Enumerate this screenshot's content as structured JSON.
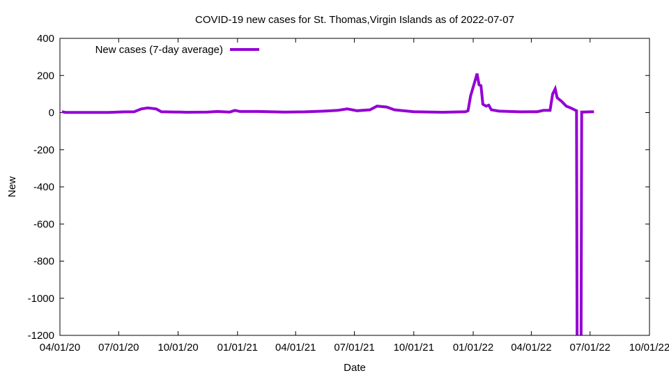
{
  "chart_data": {
    "type": "line",
    "title": "COVID-19 new cases for St. Thomas,Virgin Islands as of 2022-07-07",
    "xlabel": "Date",
    "ylabel": "New",
    "xlim": [
      "2020-04-01",
      "2022-10-01"
    ],
    "ylim": [
      -1200,
      400
    ],
    "x_ticks": [
      "04/01/20",
      "07/01/20",
      "10/01/20",
      "01/01/21",
      "04/01/21",
      "07/01/21",
      "10/01/21",
      "01/01/22",
      "04/01/22",
      "07/01/22",
      "10/01/22"
    ],
    "x_tick_dates": [
      "2020-04-01",
      "2020-07-01",
      "2020-10-01",
      "2021-01-01",
      "2021-04-01",
      "2021-07-01",
      "2021-10-01",
      "2022-01-01",
      "2022-04-01",
      "2022-07-01",
      "2022-10-01"
    ],
    "y_ticks": [
      -1200,
      -1000,
      -800,
      -600,
      -400,
      -200,
      0,
      200,
      400
    ],
    "grid": false,
    "legend_position": "top-left",
    "series": [
      {
        "name": "New cases (7-day average)",
        "color": "#9400d3",
        "points": [
          [
            "2020-04-04",
            5
          ],
          [
            "2020-04-10",
            1
          ],
          [
            "2020-06-15",
            1
          ],
          [
            "2020-07-10",
            4
          ],
          [
            "2020-07-25",
            5
          ],
          [
            "2020-08-05",
            20
          ],
          [
            "2020-08-15",
            25
          ],
          [
            "2020-08-28",
            20
          ],
          [
            "2020-09-05",
            5
          ],
          [
            "2020-10-15",
            2
          ],
          [
            "2020-11-15",
            3
          ],
          [
            "2020-12-01",
            6
          ],
          [
            "2020-12-20",
            3
          ],
          [
            "2020-12-28",
            12
          ],
          [
            "2021-01-05",
            6
          ],
          [
            "2021-02-01",
            6
          ],
          [
            "2021-03-15",
            3
          ],
          [
            "2021-04-15",
            4
          ],
          [
            "2021-05-15",
            8
          ],
          [
            "2021-06-05",
            12
          ],
          [
            "2021-06-20",
            20
          ],
          [
            "2021-07-05",
            10
          ],
          [
            "2021-07-25",
            15
          ],
          [
            "2021-08-05",
            35
          ],
          [
            "2021-08-20",
            30
          ],
          [
            "2021-09-01",
            15
          ],
          [
            "2021-10-01",
            5
          ],
          [
            "2021-11-15",
            2
          ],
          [
            "2021-12-20",
            5
          ],
          [
            "2021-12-24",
            10
          ],
          [
            "2021-12-28",
            90
          ],
          [
            "2022-01-02",
            150
          ],
          [
            "2022-01-07",
            210
          ],
          [
            "2022-01-10",
            150
          ],
          [
            "2022-01-13",
            145
          ],
          [
            "2022-01-16",
            45
          ],
          [
            "2022-01-21",
            35
          ],
          [
            "2022-01-25",
            40
          ],
          [
            "2022-01-29",
            15
          ],
          [
            "2022-02-10",
            8
          ],
          [
            "2022-03-15",
            4
          ],
          [
            "2022-04-10",
            5
          ],
          [
            "2022-04-20",
            12
          ],
          [
            "2022-04-30",
            12
          ],
          [
            "2022-05-04",
            100
          ],
          [
            "2022-05-08",
            128
          ],
          [
            "2022-05-11",
            80
          ],
          [
            "2022-05-18",
            60
          ],
          [
            "2022-05-25",
            35
          ],
          [
            "2022-06-01",
            25
          ],
          [
            "2022-06-07",
            15
          ],
          [
            "2022-06-10",
            10
          ],
          [
            "2022-06-11",
            -1300
          ],
          [
            "2022-06-17",
            -1300
          ],
          [
            "2022-06-18",
            3
          ],
          [
            "2022-07-07",
            5
          ]
        ]
      }
    ]
  }
}
